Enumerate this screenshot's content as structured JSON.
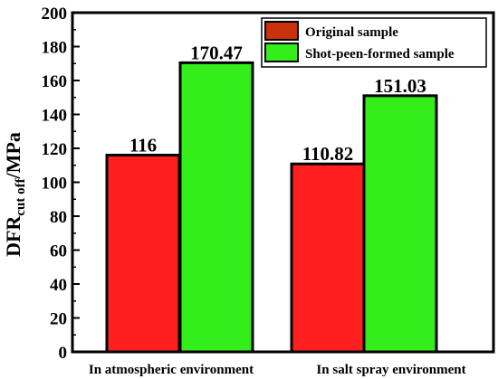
{
  "chart_data": {
    "type": "bar",
    "categories": [
      "In atmospheric environment",
      "In salt spray environment"
    ],
    "series": [
      {
        "name": "Original sample",
        "values": [
          116,
          110.82
        ],
        "color": "#ff1f1f"
      },
      {
        "name": "Shot-peen-formed sample",
        "values": [
          170.47,
          151.03
        ],
        "color": "#33ee1a"
      }
    ],
    "data_labels": [
      [
        "116",
        "110.82"
      ],
      [
        "170.47",
        "151.03"
      ]
    ],
    "ylabel": {
      "main": "DFR",
      "sub": "cut off",
      "suffix": "/MPa"
    },
    "ylim": [
      0,
      200
    ],
    "yticks": [
      0,
      20,
      40,
      60,
      80,
      100,
      120,
      140,
      160,
      180,
      200
    ],
    "grid": false,
    "legend_position": "top-right",
    "legend_swatch_colors": [
      "#c8310a",
      "#33ee1a"
    ]
  }
}
